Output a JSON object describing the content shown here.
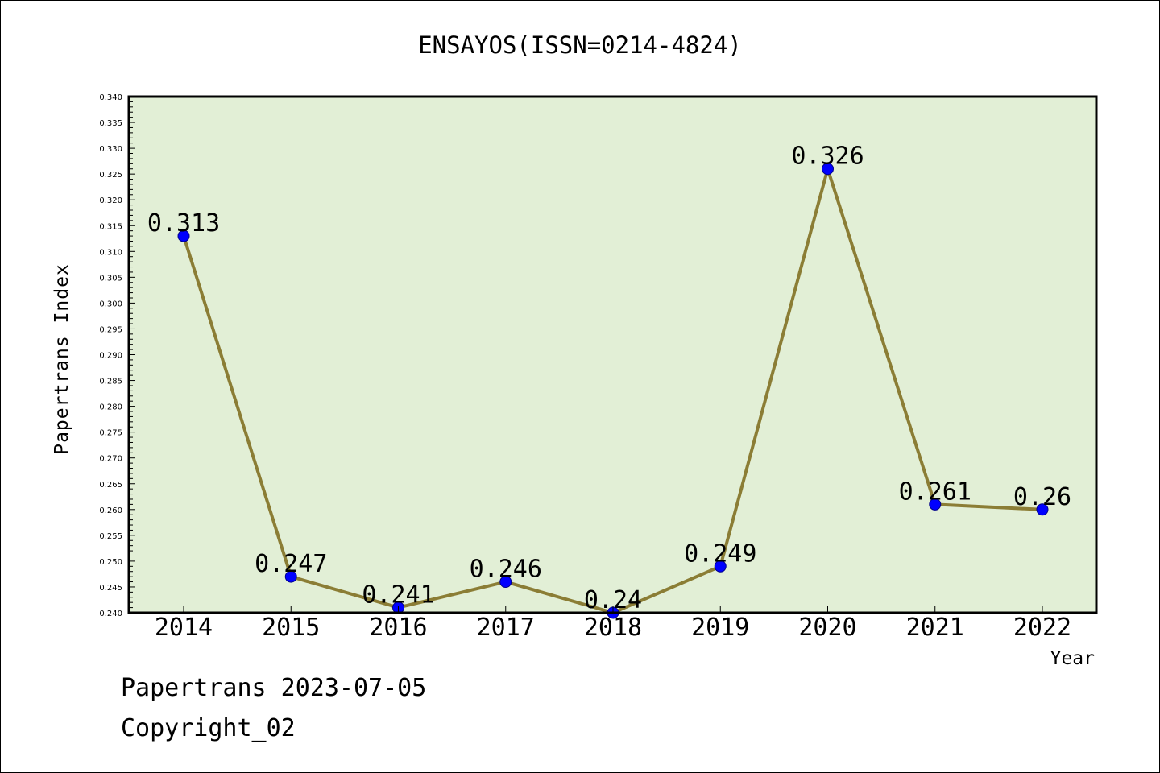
{
  "chart_data": {
    "type": "line",
    "title": "ENSAYOS(ISSN=0214-4824)",
    "xlabel": "Year",
    "ylabel": "Papertrans Index",
    "categories": [
      "2014",
      "2015",
      "2016",
      "2017",
      "2018",
      "2019",
      "2020",
      "2021",
      "2022"
    ],
    "series": [
      {
        "values": [
          0.313,
          0.247,
          0.241,
          0.246,
          0.24,
          0.249,
          0.326,
          0.261,
          0.26
        ],
        "data_labels": [
          "0.313",
          "0.247",
          "0.241",
          "0.246",
          "0.24",
          "0.249",
          "0.326",
          "0.261",
          "0.26"
        ]
      }
    ],
    "ylim": [
      0.24,
      0.34
    ],
    "yticks": [
      "0.240",
      "0.245",
      "0.250",
      "0.255",
      "0.260",
      "0.265",
      "0.270",
      "0.275",
      "0.280",
      "0.285",
      "0.290",
      "0.295",
      "0.300",
      "0.305",
      "0.310",
      "0.315",
      "0.320",
      "0.325",
      "0.330",
      "0.335",
      "0.340"
    ],
    "grid": false,
    "legend": "none"
  },
  "footer": {
    "line1": "Papertrans 2023-07-05",
    "line2": "Copyright_02"
  },
  "colors": {
    "plot_background": "#e2efd6",
    "line": "#8b7d35",
    "marker": "#0000ff",
    "marker_edge": "#00008b",
    "axis": "#000000"
  }
}
